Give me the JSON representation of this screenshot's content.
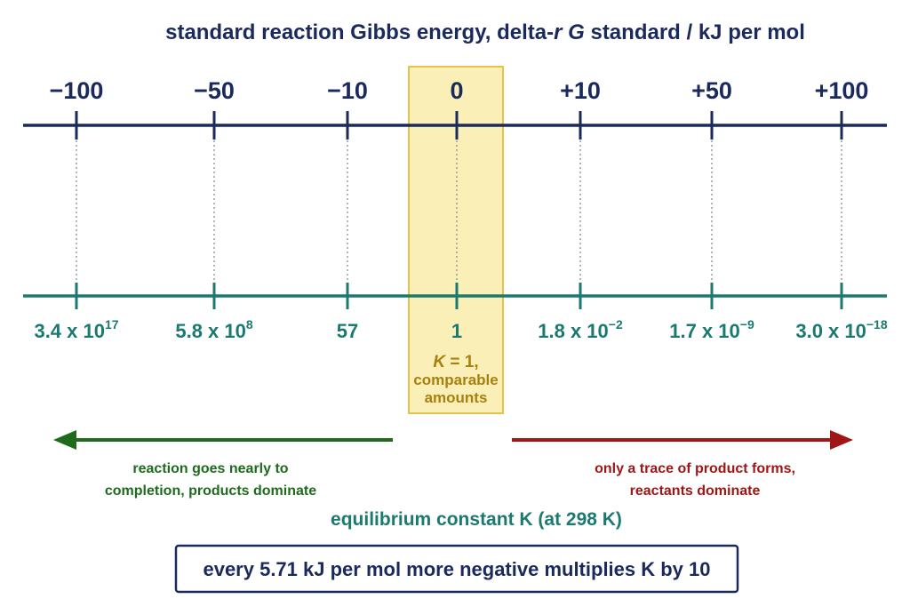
{
  "title": {
    "prefix": "standard reaction Gibbs energy, delta-",
    "r": "r",
    "space": " ",
    "g": "G",
    "suffix": " standard / kJ per mol"
  },
  "colors": {
    "navy": "#1b2a5c",
    "teal": "#1b7a70",
    "green": "#1e6b1e",
    "red": "#a01616",
    "gold": "#a9800f",
    "highlight_fill": "#fbefb8",
    "highlight_stroke": "#e6c24a"
  },
  "delta_g_ticks": [
    "−100",
    "−50",
    "−10",
    "0",
    "+10",
    "+50",
    "+100"
  ],
  "k_values": [
    {
      "mantissa": "3.4 x 10",
      "exponent": "17"
    },
    {
      "mantissa": "5.8 x 10",
      "exponent": "8"
    },
    {
      "mantissa": "57",
      "exponent": ""
    },
    {
      "mantissa": "1",
      "exponent": ""
    },
    {
      "mantissa": "1.8 x 10",
      "exponent": "−2"
    },
    {
      "mantissa": "1.7 x 10",
      "exponent": "−9"
    },
    {
      "mantissa": "3.0 x 10",
      "exponent": "−18"
    }
  ],
  "highlight": {
    "k_symbol": "K",
    "k_rest": " = 1,",
    "line2": "comparable",
    "line3": "amounts"
  },
  "left_note": [
    "reaction goes nearly to",
    "completion, products dominate"
  ],
  "right_note": [
    "only a trace of product forms,",
    "reactants dominate"
  ],
  "k_axis_title": "equilibrium constant K (at 298 K)",
  "summary": "every 5.71 kJ per mol more negative multiplies K by 10"
}
